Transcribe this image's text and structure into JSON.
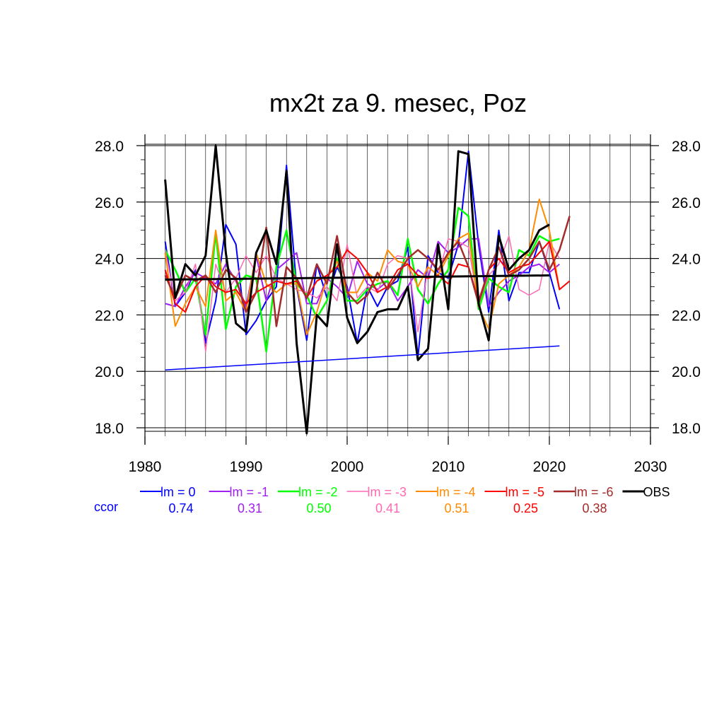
{
  "chart_data": {
    "type": "line",
    "title": "mx2t za 9. mesec, Poz",
    "xlabel": "",
    "ylabel": "",
    "xlim": [
      1980,
      2030
    ],
    "ylim": [
      17.7,
      28.4
    ],
    "x_ticks": [
      1980,
      1990,
      2000,
      2010,
      2020,
      2030
    ],
    "x_tick_labels": [
      "1980",
      "1990",
      "2000",
      "2010",
      "2020",
      "2030"
    ],
    "y_ticks": [
      18,
      20,
      22,
      24,
      26,
      28
    ],
    "y_tick_labels": [
      "18.0",
      "20.0",
      "22.0",
      "24.0",
      "26.0",
      "28.0"
    ],
    "right_axis_labels": true,
    "grid": true,
    "legend_position": "bottom",
    "ccor_label": "ccor",
    "ccor_color": "#0000ff",
    "series": [
      {
        "name": "lm = 0",
        "color": "#0000ff",
        "ccor": "0.74",
        "width": 2,
        "x_start": 1982,
        "values": [
          24.6,
          22.3,
          22.8,
          23.6,
          21.0,
          22.5,
          25.2,
          24.5,
          21.3,
          21.8,
          22.5,
          23.0,
          27.3,
          23.0,
          21.1,
          23.8,
          22.6,
          23.7,
          23.0,
          21.0,
          23.0,
          22.3,
          23.0,
          23.2,
          24.4,
          20.5,
          24.1,
          23.5,
          23.3,
          24.5,
          27.8,
          24.5,
          22.1,
          25.0,
          22.5,
          23.5,
          23.5,
          24.6,
          23.5,
          22.2
        ]
      },
      {
        "name": "lm = -1",
        "color": "#a020f0",
        "ccor": "0.31",
        "width": 2,
        "x_start": 1982,
        "values": [
          22.4,
          22.3,
          23.0,
          23.5,
          23.3,
          23.1,
          23.8,
          23.2,
          22.3,
          24.1,
          22.5,
          23.6,
          23.9,
          24.2,
          22.4,
          22.4,
          23.3,
          23.0,
          22.6,
          23.9,
          23.1,
          22.9,
          23.2,
          22.5,
          23.0,
          23.6,
          23.3,
          24.6,
          24.2,
          24.4,
          24.7,
          24.7,
          22.3,
          22.8,
          23.2,
          23.4,
          23.7,
          23.8,
          23.5,
          23.8
        ]
      },
      {
        "name": "lm = -2",
        "color": "#00ff00",
        "ccor": "0.50",
        "width": 2.5,
        "x_start": 1982,
        "values": [
          24.3,
          23.6,
          22.8,
          23.3,
          21.3,
          24.9,
          21.5,
          23.0,
          23.4,
          23.3,
          20.7,
          23.7,
          25.0,
          23.1,
          22.7,
          21.9,
          22.5,
          24.0,
          22.5,
          22.5,
          22.9,
          23.1,
          23.2,
          22.7,
          24.7,
          22.9,
          22.4,
          23.1,
          23.6,
          25.8,
          25.5,
          22.2,
          23.3,
          23.0,
          22.8,
          24.3,
          24.1,
          24.8,
          24.6,
          24.7
        ]
      },
      {
        "name": "lm = -3",
        "color": "#ff69b4",
        "ccor": "0.41",
        "width": 1.5,
        "x_start": 1982,
        "values": [
          24.3,
          22.5,
          22.8,
          23.8,
          20.7,
          23.8,
          22.8,
          23.3,
          24.1,
          23.5,
          24.1,
          23.3,
          23.1,
          22.9,
          22.8,
          22.6,
          23.0,
          22.5,
          24.5,
          22.6,
          23.0,
          22.8,
          23.8,
          24.1,
          24.0,
          21.4,
          23.7,
          23.4,
          24.7,
          24.6,
          24.4,
          22.4,
          23.4,
          23.8,
          24.8,
          22.9,
          22.7,
          22.9,
          24.6,
          24.0
        ]
      },
      {
        "name": "lm = -4",
        "color": "#ff8c00",
        "ccor": "0.51",
        "width": 2,
        "x_start": 1982,
        "values": [
          24.2,
          21.6,
          22.4,
          23.0,
          22.3,
          25.0,
          22.5,
          22.8,
          22.1,
          24.2,
          23.1,
          22.8,
          23.1,
          23.1,
          21.3,
          22.1,
          23.3,
          23.9,
          22.8,
          22.8,
          23.5,
          23.2,
          24.3,
          23.9,
          23.8,
          23.0,
          23.7,
          23.4,
          24.1,
          24.7,
          24.9,
          22.3,
          21.5,
          23.1,
          23.4,
          23.7,
          24.3,
          26.1,
          25.0,
          22.9
        ]
      },
      {
        "name": "lm = -5",
        "color": "#ff0000",
        "ccor": "0.25",
        "width": 2,
        "x_start": 1982,
        "values": [
          23.6,
          22.4,
          22.1,
          23.0,
          23.4,
          23.0,
          22.8,
          22.9,
          22.4,
          22.8,
          23.0,
          23.2,
          23.1,
          23.2,
          22.6,
          23.2,
          23.4,
          23.7,
          24.3,
          24.0,
          23.5,
          22.8,
          23.0,
          23.6,
          23.8,
          23.4,
          23.3,
          23.4,
          23.1,
          23.8,
          23.7,
          22.5,
          23.6,
          24.0,
          23.5,
          23.7,
          23.8,
          24.2,
          24.6,
          22.9,
          23.2
        ]
      },
      {
        "name": "lm = -6",
        "color": "#a52a2a",
        "ccor": "0.38",
        "width": 2.5,
        "x_start": 1982,
        "values": [
          23.4,
          22.6,
          23.4,
          23.2,
          23.4,
          22.8,
          23.6,
          23.3,
          22.1,
          22.8,
          25.1,
          21.6,
          23.7,
          23.3,
          22.6,
          23.8,
          23.1,
          24.8,
          22.8,
          22.4,
          22.7,
          23.5,
          22.9,
          23.4,
          24.0,
          24.3,
          24.0,
          23.6,
          24.2,
          24.6,
          23.7,
          22.4,
          23.6,
          24.4,
          23.4,
          23.6,
          24.0,
          24.6,
          23.6,
          24.3,
          25.5
        ]
      },
      {
        "name": "OBS",
        "color": "#000000",
        "ccor": "",
        "width": 3,
        "x_start": 1982,
        "values": [
          26.8,
          22.6,
          23.8,
          23.4,
          24.1,
          28.0,
          24.2,
          21.7,
          21.4,
          24.2,
          25.0,
          23.8,
          27.1,
          21.0,
          17.8,
          22.0,
          21.6,
          24.5,
          21.9,
          21.0,
          21.4,
          22.1,
          22.2,
          22.2,
          23.0,
          20.4,
          20.8,
          24.5,
          22.2,
          27.8,
          27.7,
          22.4,
          21.1,
          24.8,
          23.6,
          24.0,
          24.3,
          25.0,
          25.2
        ]
      }
    ],
    "trend_lines": [
      {
        "name": "obs-trend",
        "color": "#000000",
        "x": [
          1982,
          2020
        ],
        "y": [
          23.25,
          23.4
        ],
        "width": 3
      },
      {
        "name": "model-trend",
        "color": "#0000ff",
        "x": [
          1982,
          2021
        ],
        "y": [
          20.05,
          20.9
        ],
        "width": 1.5
      }
    ]
  }
}
